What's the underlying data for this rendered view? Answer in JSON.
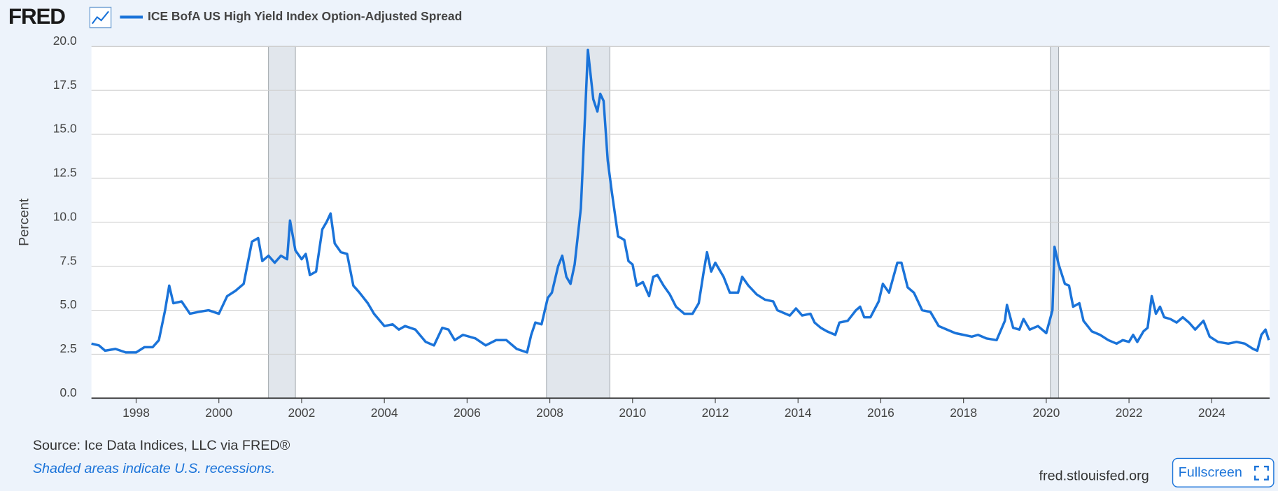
{
  "brand": "FRED",
  "chart_data": {
    "type": "line",
    "ylabel": "Percent",
    "xlim": [
      1996.92,
      2025.4
    ],
    "ylim": [
      0,
      20
    ],
    "xticks": [
      1998,
      2000,
      2002,
      2004,
      2006,
      2008,
      2010,
      2012,
      2014,
      2016,
      2018,
      2020,
      2022,
      2024
    ],
    "yticks": [
      {
        "value": 0,
        "label": "0.0"
      },
      2.5,
      {
        "value": 5,
        "label": "5.0"
      },
      7.5,
      {
        "value": 10,
        "label": "10.0"
      },
      12.5,
      {
        "value": 15,
        "label": "15.0"
      },
      17.5,
      {
        "value": 20,
        "label": "20.0"
      }
    ],
    "grid": true,
    "recession_color": "#e1e6ec",
    "recessions": [
      [
        2001.2,
        2001.85
      ],
      [
        2007.92,
        2009.45
      ],
      [
        2020.1,
        2020.3
      ]
    ],
    "x": [
      1996.92,
      1997.1,
      1997.25,
      1997.5,
      1997.75,
      1998.0,
      1998.2,
      1998.4,
      1998.55,
      1998.7,
      1998.8,
      1998.9,
      1999.1,
      1999.3,
      1999.5,
      1999.75,
      2000.0,
      2000.2,
      2000.4,
      2000.6,
      2000.8,
      2000.95,
      2001.05,
      2001.2,
      2001.35,
      2001.5,
      2001.65,
      2001.72,
      2001.85,
      2002.0,
      2002.1,
      2002.2,
      2002.35,
      2002.5,
      2002.6,
      2002.7,
      2002.8,
      2002.95,
      2003.1,
      2003.25,
      2003.4,
      2003.6,
      2003.75,
      2004.0,
      2004.2,
      2004.35,
      2004.5,
      2004.75,
      2005.0,
      2005.2,
      2005.4,
      2005.55,
      2005.7,
      2005.9,
      2006.2,
      2006.45,
      2006.7,
      2006.95,
      2007.2,
      2007.45,
      2007.55,
      2007.65,
      2007.8,
      2007.95,
      2008.05,
      2008.2,
      2008.3,
      2008.4,
      2008.5,
      2008.6,
      2008.75,
      2008.85,
      2008.92,
      2009.05,
      2009.15,
      2009.22,
      2009.3,
      2009.4,
      2009.5,
      2009.65,
      2009.8,
      2009.9,
      2010.0,
      2010.1,
      2010.25,
      2010.4,
      2010.5,
      2010.6,
      2010.75,
      2010.9,
      2011.05,
      2011.25,
      2011.45,
      2011.6,
      2011.72,
      2011.8,
      2011.9,
      2012.0,
      2012.2,
      2012.35,
      2012.55,
      2012.65,
      2012.8,
      2013.0,
      2013.2,
      2013.4,
      2013.5,
      2013.8,
      2013.95,
      2014.1,
      2014.3,
      2014.4,
      2014.55,
      2014.7,
      2014.9,
      2015.0,
      2015.2,
      2015.4,
      2015.5,
      2015.6,
      2015.75,
      2015.95,
      2016.05,
      2016.2,
      2016.4,
      2016.5,
      2016.65,
      2016.8,
      2017.0,
      2017.2,
      2017.4,
      2017.6,
      2017.8,
      2018.0,
      2018.2,
      2018.35,
      2018.55,
      2018.8,
      2019.0,
      2019.05,
      2019.2,
      2019.35,
      2019.45,
      2019.6,
      2019.8,
      2020.0,
      2020.15,
      2020.2,
      2020.3,
      2020.45,
      2020.55,
      2020.65,
      2020.8,
      2020.9,
      2021.1,
      2021.3,
      2021.5,
      2021.7,
      2021.85,
      2022.0,
      2022.1,
      2022.2,
      2022.35,
      2022.45,
      2022.55,
      2022.65,
      2022.75,
      2022.85,
      2023.0,
      2023.15,
      2023.3,
      2023.45,
      2023.6,
      2023.8,
      2023.95,
      2024.15,
      2024.4,
      2024.6,
      2024.8,
      2025.0,
      2025.1,
      2025.2,
      2025.3,
      2025.38
    ],
    "series": [
      {
        "name": "ICE BofA US High Yield Index Option-Adjusted Spread",
        "color": "#1a73d9",
        "values": [
          3.1,
          3.0,
          2.7,
          2.8,
          2.6,
          2.6,
          2.9,
          2.9,
          3.3,
          5.0,
          6.4,
          5.4,
          5.5,
          4.8,
          4.9,
          5.0,
          4.8,
          5.8,
          6.1,
          6.5,
          8.9,
          9.1,
          7.8,
          8.1,
          7.7,
          8.1,
          7.9,
          10.1,
          8.4,
          7.9,
          8.2,
          7.0,
          7.2,
          9.6,
          10.0,
          10.5,
          8.8,
          8.3,
          8.2,
          6.4,
          6.0,
          5.4,
          4.8,
          4.1,
          4.2,
          3.9,
          4.1,
          3.9,
          3.2,
          3.0,
          4.0,
          3.9,
          3.3,
          3.6,
          3.4,
          3.0,
          3.3,
          3.3,
          2.8,
          2.6,
          3.6,
          4.3,
          4.2,
          5.7,
          6.0,
          7.5,
          8.1,
          6.9,
          6.5,
          7.6,
          10.8,
          16.0,
          19.8,
          17.0,
          16.3,
          17.3,
          16.9,
          13.5,
          11.7,
          9.2,
          9.0,
          7.8,
          7.6,
          6.4,
          6.6,
          5.8,
          6.9,
          7.0,
          6.4,
          5.9,
          5.2,
          4.8,
          4.8,
          5.4,
          7.2,
          8.3,
          7.2,
          7.7,
          6.9,
          6.0,
          6.0,
          6.9,
          6.4,
          5.9,
          5.6,
          5.5,
          5.0,
          4.7,
          5.1,
          4.7,
          4.8,
          4.3,
          4.0,
          3.8,
          3.6,
          4.3,
          4.4,
          5.0,
          5.2,
          4.6,
          4.6,
          5.5,
          6.5,
          6.0,
          7.7,
          7.7,
          6.3,
          6.0,
          5.0,
          4.9,
          4.1,
          3.9,
          3.7,
          3.6,
          3.5,
          3.6,
          3.4,
          3.3,
          4.4,
          5.3,
          4.0,
          3.9,
          4.5,
          3.9,
          4.1,
          3.7,
          5.0,
          8.6,
          7.6,
          6.5,
          6.4,
          5.2,
          5.4,
          4.4,
          3.8,
          3.6,
          3.3,
          3.1,
          3.3,
          3.2,
          3.6,
          3.2,
          3.8,
          4.0,
          5.8,
          4.8,
          5.2,
          4.6,
          4.5,
          4.3,
          4.6,
          4.3,
          3.9,
          4.4,
          3.5,
          3.2,
          3.1,
          3.2,
          3.1,
          2.8,
          2.7,
          3.6,
          3.9,
          3.3
        ]
      }
    ]
  },
  "footer": {
    "source": "Source: Ice Data Indices, LLC via FRED®",
    "note": "Shaded areas indicate U.S. recessions.",
    "site": "fred.stlouisfed.org",
    "button": "Fullscreen"
  }
}
